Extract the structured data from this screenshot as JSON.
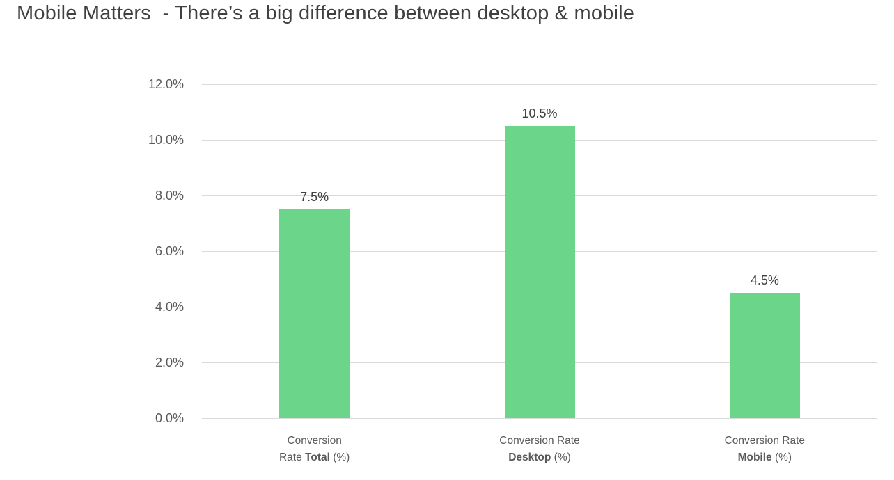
{
  "chart_data": {
    "type": "bar",
    "title": "Mobile Matters  - There’s a big difference between desktop & mobile",
    "categories": [
      "Conversion Rate Total (%)",
      "Conversion Rate Desktop (%)",
      "Conversion Rate Mobile (%)"
    ],
    "category_labels": [
      {
        "line1": "Conversion",
        "line2_prefix": "Rate ",
        "line2_bold": "Total",
        "line2_suffix": " (%)"
      },
      {
        "line1": "Conversion Rate",
        "line2_prefix": "",
        "line2_bold": "Desktop",
        "line2_suffix": " (%)"
      },
      {
        "line1": "Conversion Rate",
        "line2_prefix": "",
        "line2_bold": "Mobile",
        "line2_suffix": " (%)"
      }
    ],
    "values": [
      7.5,
      10.5,
      4.5
    ],
    "data_labels": [
      "7.5%",
      "10.5%",
      "4.5%"
    ],
    "xlabel": "",
    "ylabel": "",
    "ylim": [
      0,
      12
    ],
    "yticks": [
      0,
      2,
      4,
      6,
      8,
      10,
      12
    ],
    "ytick_labels": [
      "0.0%",
      "2.0%",
      "4.0%",
      "6.0%",
      "8.0%",
      "10.0%",
      "12.0%"
    ],
    "grid": true,
    "legend": "none"
  },
  "colors": {
    "bar": "#6BD68A",
    "gridline": "#D9D9D9",
    "title_text": "#404040",
    "axis_text": "#595959",
    "data_label_text": "#404040",
    "background": "#FFFFFF"
  }
}
